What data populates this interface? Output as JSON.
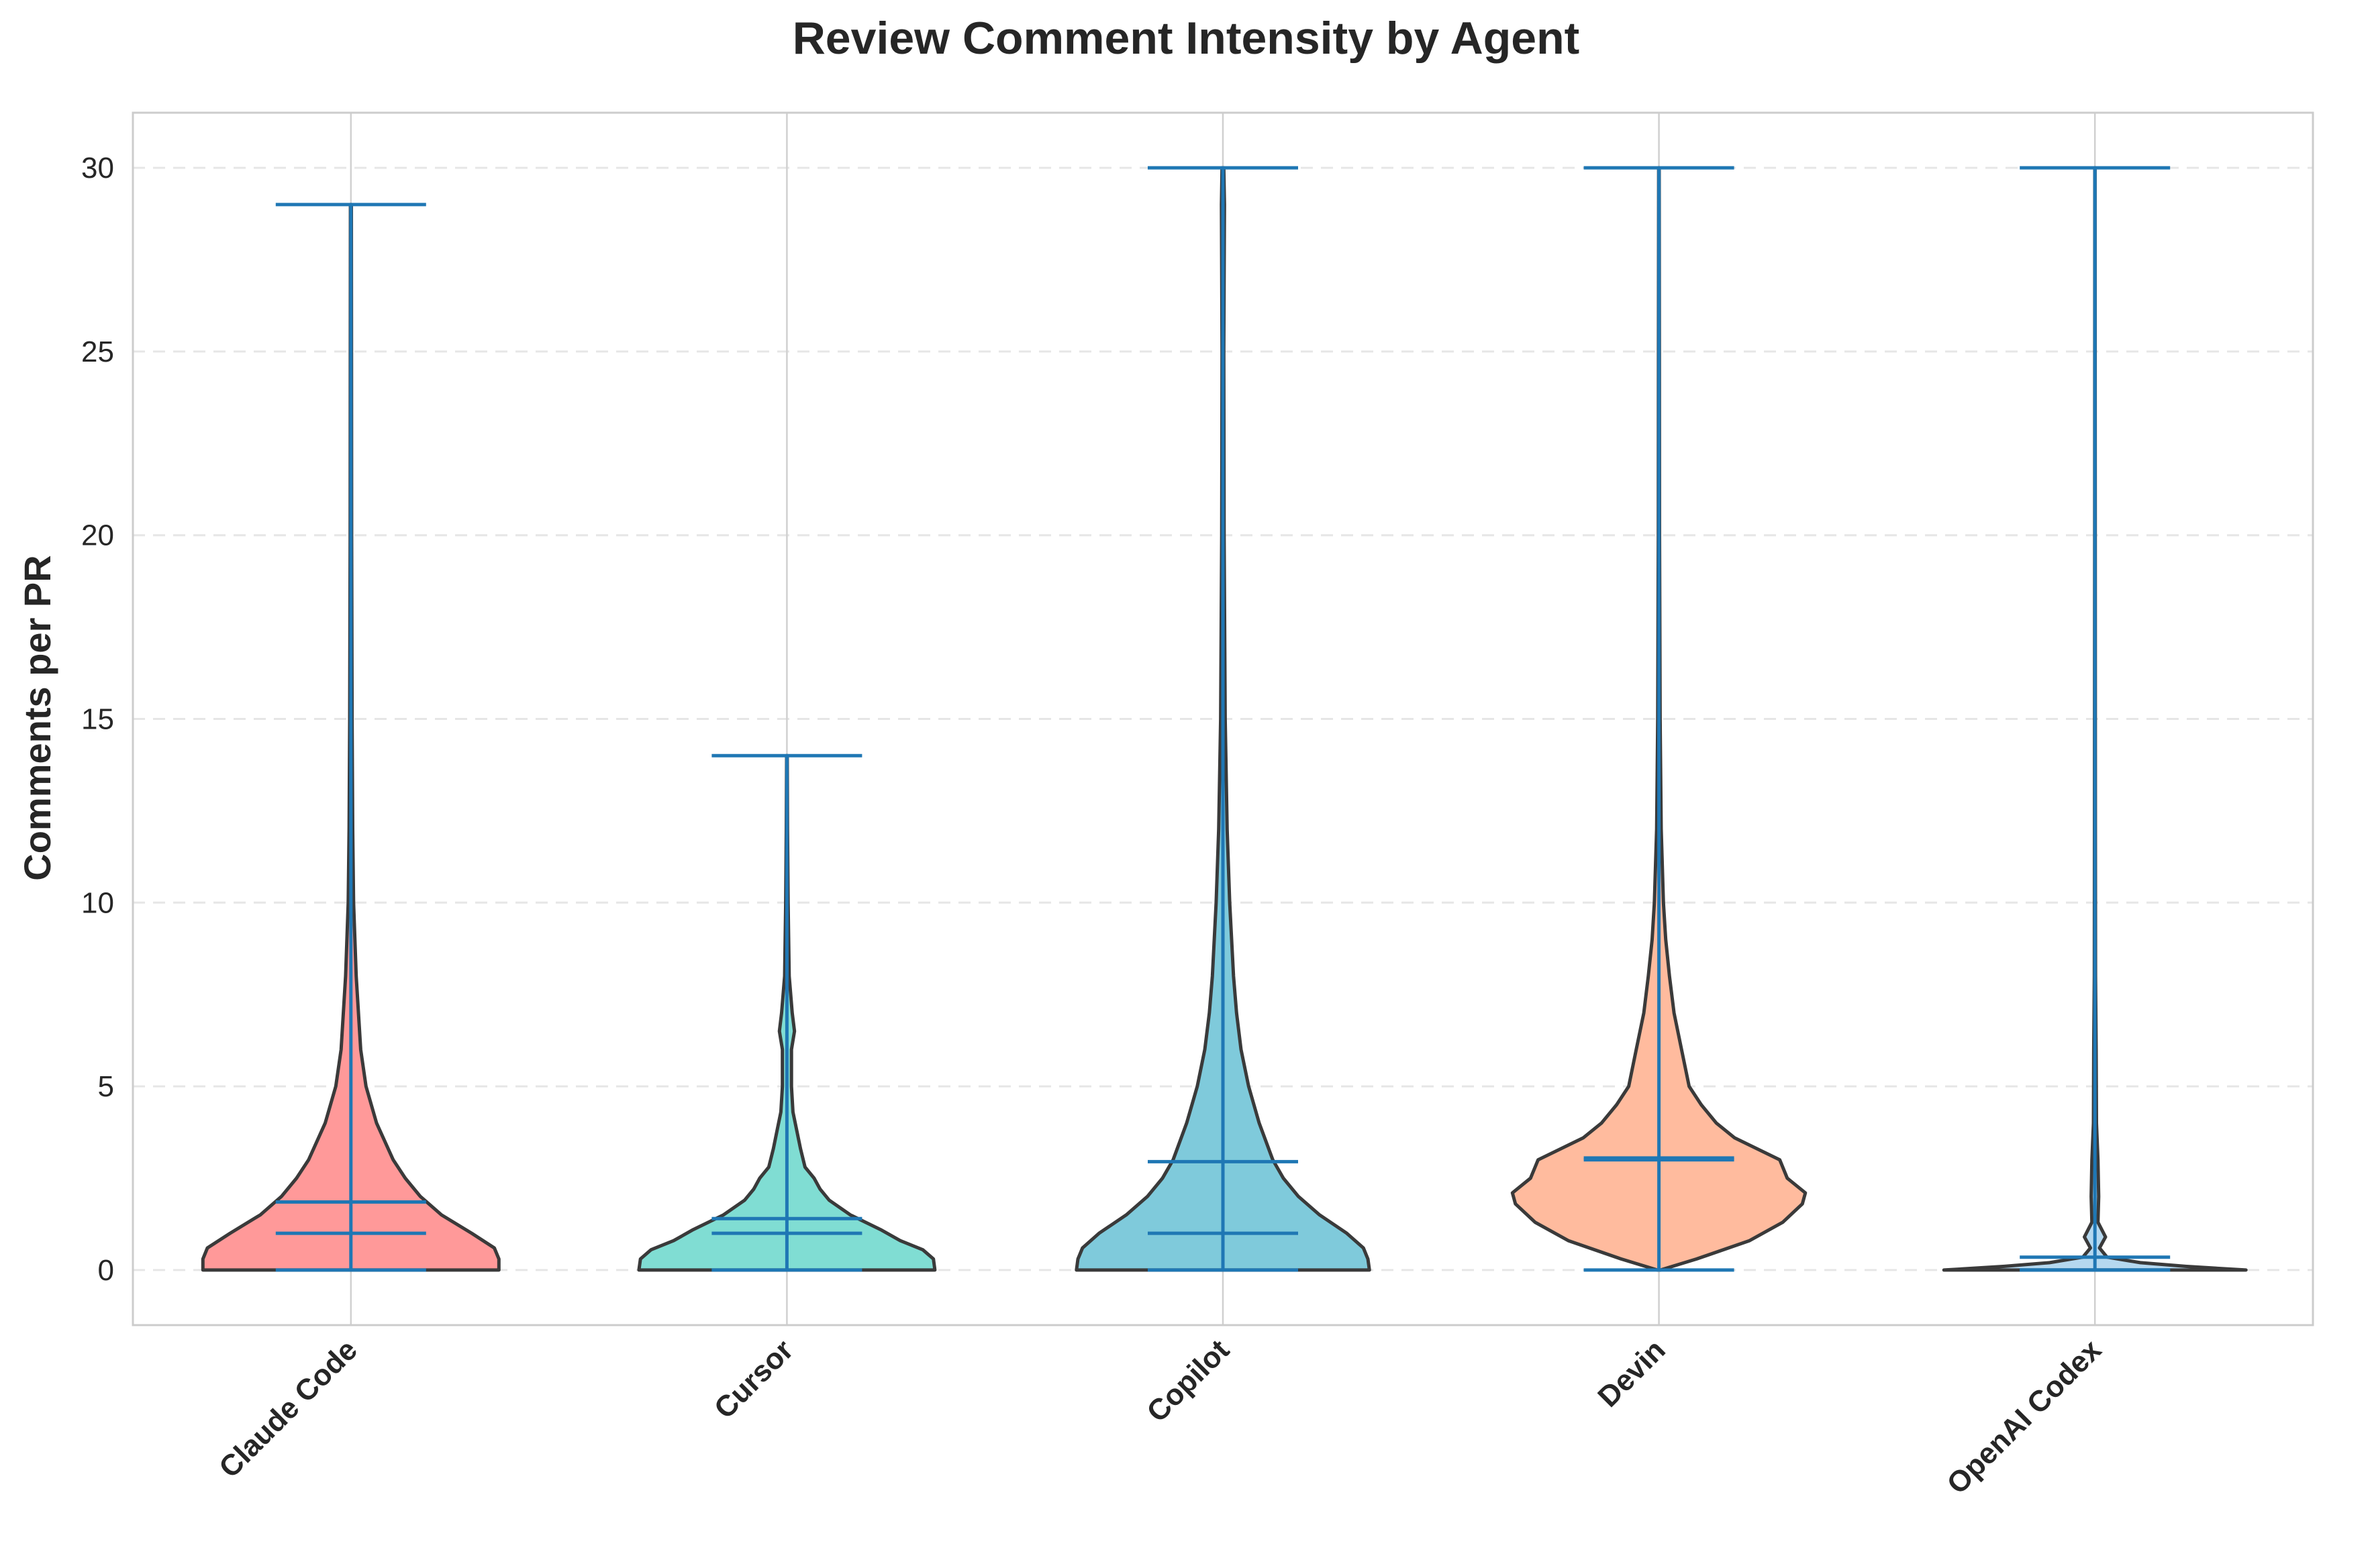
{
  "chart_data": {
    "type": "violin",
    "title": "Review Comment Intensity by Agent",
    "xlabel": "",
    "ylabel": "Comments per PR",
    "ylim": [
      -1.5,
      31.5
    ],
    "yticks": [
      "0",
      "5",
      "10",
      "15",
      "20",
      "25",
      "30"
    ],
    "grid": true,
    "legend": "none",
    "line_color": "#1f77b4",
    "outline_color": "#3a3a3a",
    "series": [
      {
        "category": "Claude Code",
        "color": "#ff9999",
        "min": 0,
        "max": 29,
        "mean": 1.85,
        "median": 1,
        "profile": [
          [
            0,
            0.98
          ],
          [
            0.3,
            0.98
          ],
          [
            0.6,
            0.95
          ],
          [
            1,
            0.8
          ],
          [
            1.5,
            0.6
          ],
          [
            2,
            0.46
          ],
          [
            2.5,
            0.36
          ],
          [
            3,
            0.28
          ],
          [
            4,
            0.17
          ],
          [
            5,
            0.1
          ],
          [
            6,
            0.065
          ],
          [
            8,
            0.035
          ],
          [
            10,
            0.018
          ],
          [
            12,
            0.012
          ],
          [
            15,
            0.008
          ],
          [
            20,
            0.005
          ],
          [
            25,
            0.004
          ],
          [
            29,
            0.003
          ]
        ]
      },
      {
        "category": "Cursor",
        "color": "#80ddd3",
        "min": 0,
        "max": 14,
        "mean": 1.4,
        "median": 1,
        "profile": [
          [
            0,
            0.98
          ],
          [
            0.3,
            0.97
          ],
          [
            0.55,
            0.9
          ],
          [
            0.8,
            0.75
          ],
          [
            1.1,
            0.62
          ],
          [
            1.5,
            0.42
          ],
          [
            1.9,
            0.28
          ],
          [
            2.2,
            0.22
          ],
          [
            2.5,
            0.18
          ],
          [
            2.8,
            0.12
          ],
          [
            3.3,
            0.09
          ],
          [
            3.9,
            0.06
          ],
          [
            4.3,
            0.04
          ],
          [
            5,
            0.03
          ],
          [
            6,
            0.03
          ],
          [
            6.5,
            0.05
          ],
          [
            7,
            0.035
          ],
          [
            8,
            0.015
          ],
          [
            10,
            0.008
          ],
          [
            12,
            0.004
          ],
          [
            14,
            0.002
          ]
        ]
      },
      {
        "category": "Copilot",
        "color": "#7fcadb",
        "min": 0,
        "max": 30,
        "mean": 2.95,
        "median": 1,
        "profile": [
          [
            0,
            0.97
          ],
          [
            0.3,
            0.96
          ],
          [
            0.6,
            0.93
          ],
          [
            1,
            0.82
          ],
          [
            1.5,
            0.64
          ],
          [
            2,
            0.5
          ],
          [
            2.5,
            0.4
          ],
          [
            3,
            0.33
          ],
          [
            4,
            0.24
          ],
          [
            5,
            0.17
          ],
          [
            6,
            0.12
          ],
          [
            7,
            0.09
          ],
          [
            8,
            0.07
          ],
          [
            10,
            0.045
          ],
          [
            12,
            0.028
          ],
          [
            15,
            0.015
          ],
          [
            20,
            0.008
          ],
          [
            25,
            0.006
          ],
          [
            29,
            0.01
          ],
          [
            30,
            0.006
          ]
        ]
      },
      {
        "category": "Devin",
        "color": "#ffbb9e",
        "min": 0,
        "max": 30,
        "mean": 3.05,
        "median": 3,
        "profile": [
          [
            0,
            0.01
          ],
          [
            0.3,
            0.25
          ],
          [
            0.8,
            0.6
          ],
          [
            1.3,
            0.82
          ],
          [
            1.8,
            0.95
          ],
          [
            2.1,
            0.97
          ],
          [
            2.5,
            0.85
          ],
          [
            3,
            0.8
          ],
          [
            3.6,
            0.5
          ],
          [
            4,
            0.38
          ],
          [
            4.5,
            0.28
          ],
          [
            5,
            0.2
          ],
          [
            6,
            0.15
          ],
          [
            7,
            0.1
          ],
          [
            8,
            0.07
          ],
          [
            9,
            0.045
          ],
          [
            10,
            0.03
          ],
          [
            12,
            0.015
          ],
          [
            15,
            0.008
          ],
          [
            20,
            0.004
          ],
          [
            25,
            0.003
          ],
          [
            30,
            0.002
          ]
        ]
      },
      {
        "category": "OpenAI Codex",
        "color": "#b5d8ef",
        "min": 0,
        "max": 30,
        "mean": 0.35,
        "median": 0,
        "profile": [
          [
            0,
            1.0
          ],
          [
            0.1,
            0.6
          ],
          [
            0.2,
            0.3
          ],
          [
            0.35,
            0.08
          ],
          [
            0.6,
            0.03
          ],
          [
            0.9,
            0.07
          ],
          [
            1.3,
            0.02
          ],
          [
            2,
            0.025
          ],
          [
            3,
            0.02
          ],
          [
            4,
            0.01
          ],
          [
            6,
            0.008
          ],
          [
            8,
            0.004
          ],
          [
            12,
            0.003
          ],
          [
            20,
            0.002
          ],
          [
            30,
            0.001
          ]
        ]
      }
    ]
  }
}
